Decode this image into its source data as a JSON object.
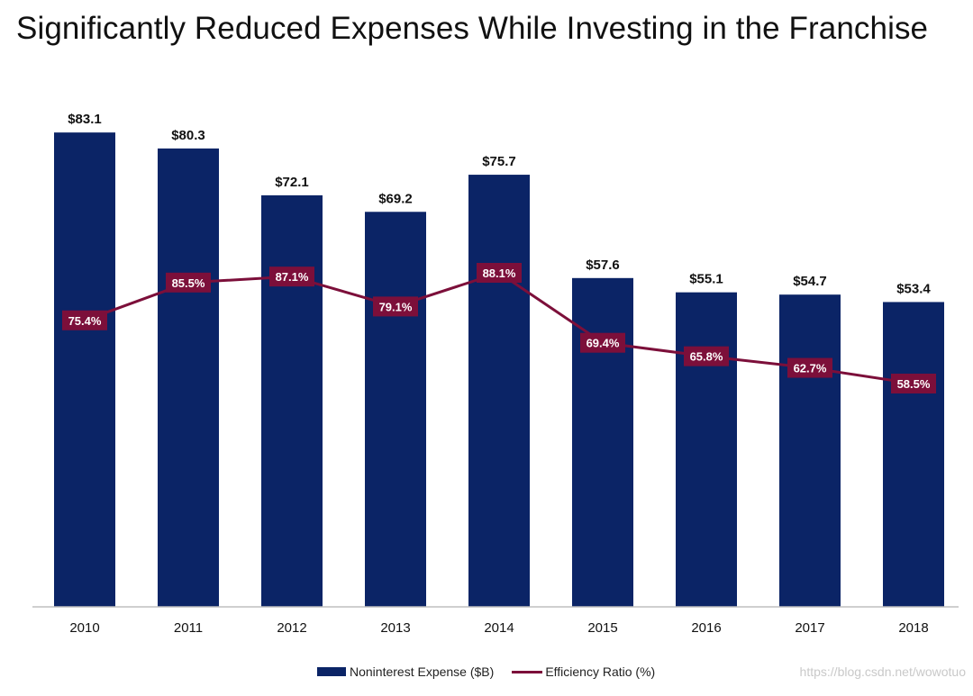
{
  "title": "Significantly Reduced Expenses While Investing in the Franchise",
  "watermark": "https://blog.csdn.net/wowotuo",
  "colors": {
    "bar": "#0b2466",
    "line": "#7c0f3a",
    "label_bg": "#7c0f3a",
    "label_text": "#ffffff"
  },
  "chart_data": {
    "type": "bar",
    "title": "Significantly Reduced Expenses While Investing in the Franchise",
    "xlabel": "",
    "ylabel": "",
    "categories": [
      "2010",
      "2011",
      "2012",
      "2013",
      "2014",
      "2015",
      "2016",
      "2017",
      "2018"
    ],
    "ylim": [
      0,
      100
    ],
    "line_ylim": [
      0,
      100
    ],
    "grid": false,
    "legend_position": "bottom",
    "series": [
      {
        "name": "Noninterest Expense ($B)",
        "type": "bar",
        "values": [
          83.1,
          80.3,
          72.1,
          69.2,
          75.7,
          57.6,
          55.1,
          54.7,
          53.4
        ],
        "labels": [
          "$83.1",
          "$80.3",
          "$72.1",
          "$69.2",
          "$75.7",
          "$57.6",
          "$55.1",
          "$54.7",
          "$53.4"
        ]
      },
      {
        "name": "Efficiency Ratio (%)",
        "type": "line",
        "values": [
          75.4,
          85.5,
          87.1,
          79.1,
          88.1,
          69.4,
          65.8,
          62.7,
          58.5
        ],
        "labels": [
          "75.4%",
          "85.5%",
          "87.1%",
          "79.1%",
          "88.1%",
          "69.4%",
          "65.8%",
          "62.7%",
          "58.5%"
        ]
      }
    ]
  }
}
